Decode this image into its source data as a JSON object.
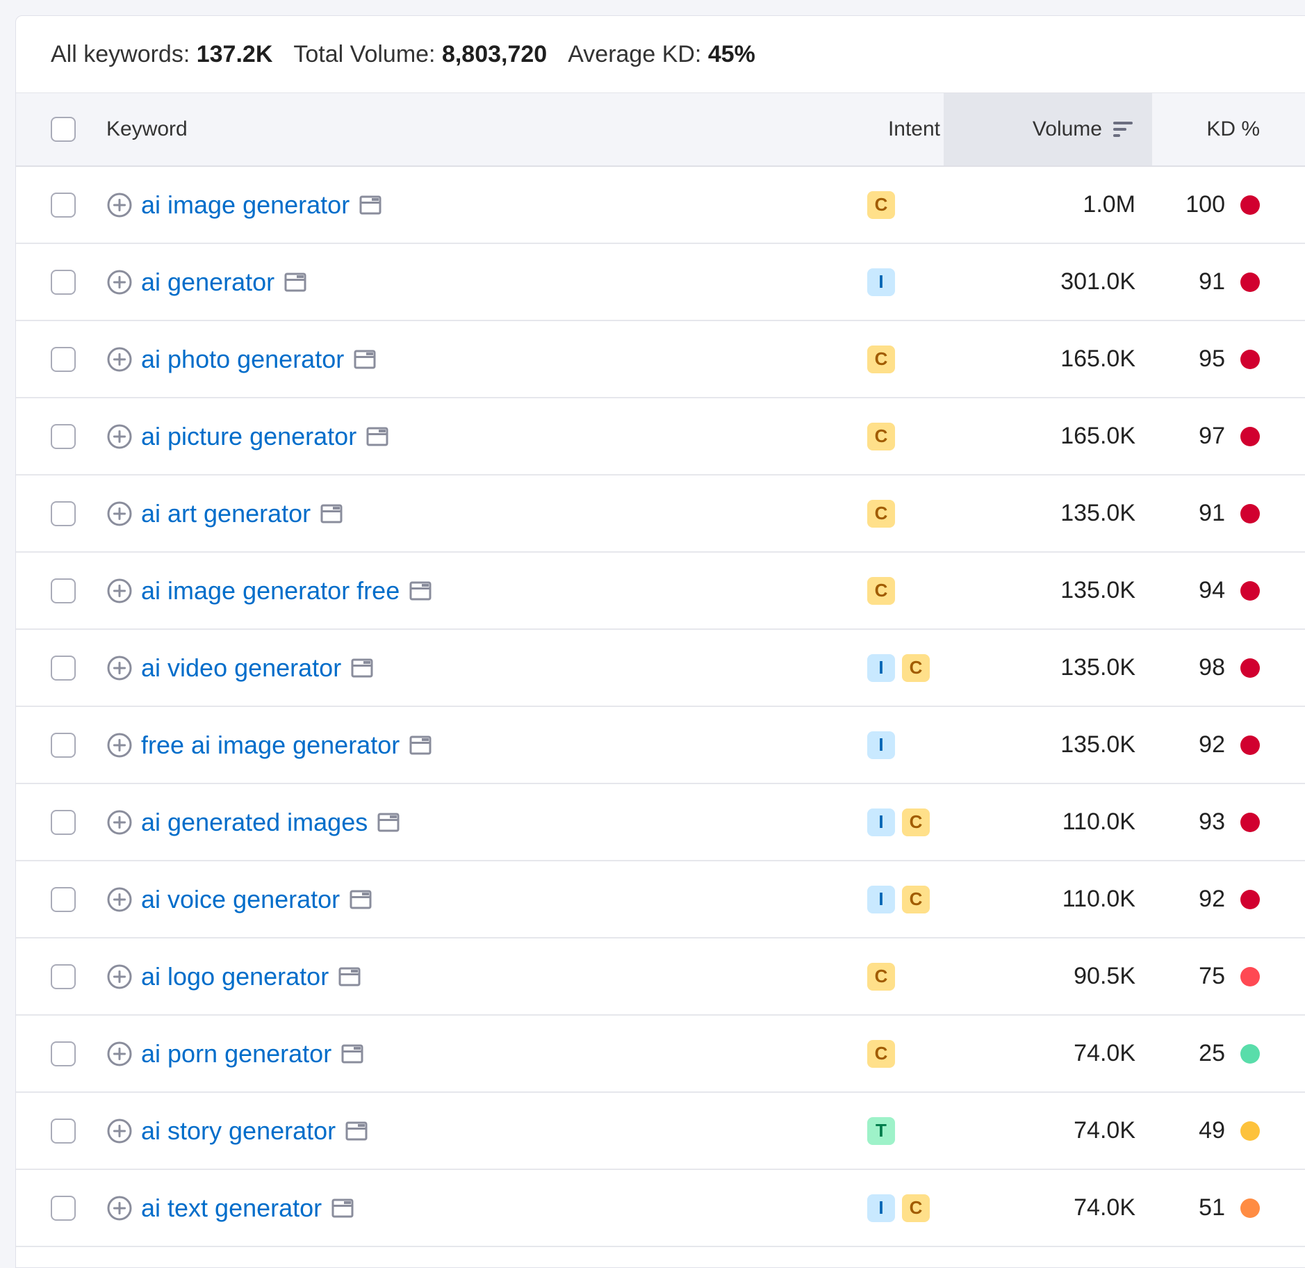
{
  "summary": {
    "all_keywords_label": "All keywords:",
    "all_keywords_value": "137.2K",
    "total_volume_label": "Total Volume:",
    "total_volume_value": "8,803,720",
    "average_kd_label": "Average KD:",
    "average_kd_value": "45%"
  },
  "table": {
    "headers": {
      "keyword": "Keyword",
      "intent": "Intent",
      "volume": "Volume",
      "kd": "KD %"
    },
    "rows": [
      {
        "keyword": "ai image generator",
        "intents": [
          "C"
        ],
        "volume": "1.0M",
        "kd": "100",
        "kd_color": "#d1002f"
      },
      {
        "keyword": "ai generator",
        "intents": [
          "I"
        ],
        "volume": "301.0K",
        "kd": "91",
        "kd_color": "#d1002f"
      },
      {
        "keyword": "ai photo generator",
        "intents": [
          "C"
        ],
        "volume": "165.0K",
        "kd": "95",
        "kd_color": "#d1002f"
      },
      {
        "keyword": "ai picture generator",
        "intents": [
          "C"
        ],
        "volume": "165.0K",
        "kd": "97",
        "kd_color": "#d1002f"
      },
      {
        "keyword": "ai art generator",
        "intents": [
          "C"
        ],
        "volume": "135.0K",
        "kd": "91",
        "kd_color": "#d1002f"
      },
      {
        "keyword": "ai image generator free",
        "intents": [
          "C"
        ],
        "volume": "135.0K",
        "kd": "94",
        "kd_color": "#d1002f"
      },
      {
        "keyword": "ai video generator",
        "intents": [
          "I",
          "C"
        ],
        "volume": "135.0K",
        "kd": "98",
        "kd_color": "#d1002f"
      },
      {
        "keyword": "free ai image generator",
        "intents": [
          "I"
        ],
        "volume": "135.0K",
        "kd": "92",
        "kd_color": "#d1002f"
      },
      {
        "keyword": "ai generated images",
        "intents": [
          "I",
          "C"
        ],
        "volume": "110.0K",
        "kd": "93",
        "kd_color": "#d1002f"
      },
      {
        "keyword": "ai voice generator",
        "intents": [
          "I",
          "C"
        ],
        "volume": "110.0K",
        "kd": "92",
        "kd_color": "#d1002f"
      },
      {
        "keyword": "ai logo generator",
        "intents": [
          "C"
        ],
        "volume": "90.5K",
        "kd": "75",
        "kd_color": "#ff4953"
      },
      {
        "keyword": "ai porn generator",
        "intents": [
          "C"
        ],
        "volume": "74.0K",
        "kd": "25",
        "kd_color": "#59ddaa"
      },
      {
        "keyword": "ai story generator",
        "intents": [
          "T"
        ],
        "volume": "74.0K",
        "kd": "49",
        "kd_color": "#fdc23c"
      },
      {
        "keyword": "ai text generator",
        "intents": [
          "I",
          "C"
        ],
        "volume": "74.0K",
        "kd": "51",
        "kd_color": "#ff8c43"
      }
    ]
  },
  "icons": {
    "row_add": "plus-circle-icon",
    "row_serp": "serp-window-icon",
    "sort": "sort-descending-icon"
  }
}
